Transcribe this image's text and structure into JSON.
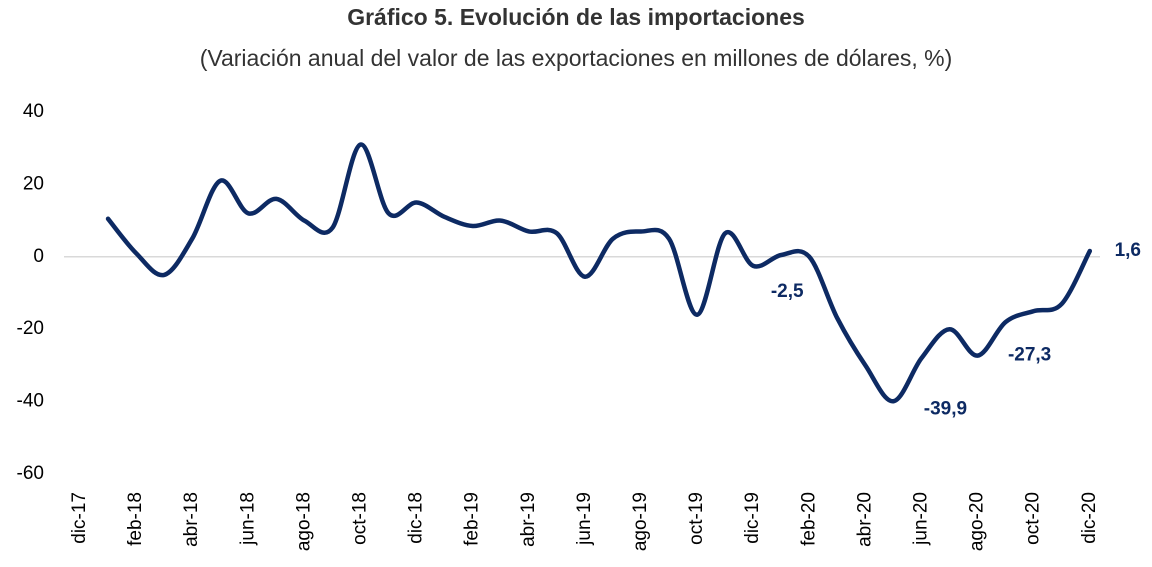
{
  "chart_data": {
    "type": "line",
    "title": "Gráfico 5. Evolución de las importaciones",
    "subtitle": "(Variación anual del valor de las exportaciones en millones de dólares, %)",
    "categories": [
      "dic-17",
      null,
      "feb-18",
      null,
      "abr-18",
      null,
      "jun-18",
      null,
      "ago-18",
      null,
      "oct-18",
      null,
      "dic-18",
      null,
      "feb-19",
      null,
      "abr-19",
      null,
      "jun-19",
      null,
      "ago-19",
      null,
      "oct-19",
      null,
      "dic-19",
      null,
      "feb-20",
      null,
      "abr-20",
      null,
      "jun-20",
      null,
      "ago-20",
      null,
      "oct-20",
      null,
      "dic-20"
    ],
    "series": [
      {
        "name": "Importaciones",
        "color": "#0d2a63",
        "values": [
          null,
          10.5,
          1,
          -5,
          5,
          21,
          12,
          16,
          10,
          8,
          31,
          12,
          15,
          11,
          8.5,
          10,
          7,
          6.5,
          -5.5,
          5,
          7,
          5,
          -16,
          6.5,
          -2.5,
          0.5,
          0,
          -17,
          -30,
          -39.9,
          -28,
          -20,
          -27.3,
          -18,
          -15,
          -13,
          1.6
        ],
        "value_labels": [
          null,
          null,
          null,
          null,
          null,
          null,
          null,
          null,
          null,
          null,
          null,
          null,
          null,
          null,
          null,
          null,
          null,
          null,
          null,
          null,
          null,
          null,
          null,
          null,
          "-2,5",
          null,
          null,
          null,
          null,
          "-39,9",
          null,
          null,
          "-27,3",
          null,
          null,
          null,
          "1,6"
        ]
      }
    ],
    "ylim": [
      -60,
      40
    ],
    "yticks": [
      40,
      20,
      0,
      -20,
      -40,
      -60
    ]
  }
}
